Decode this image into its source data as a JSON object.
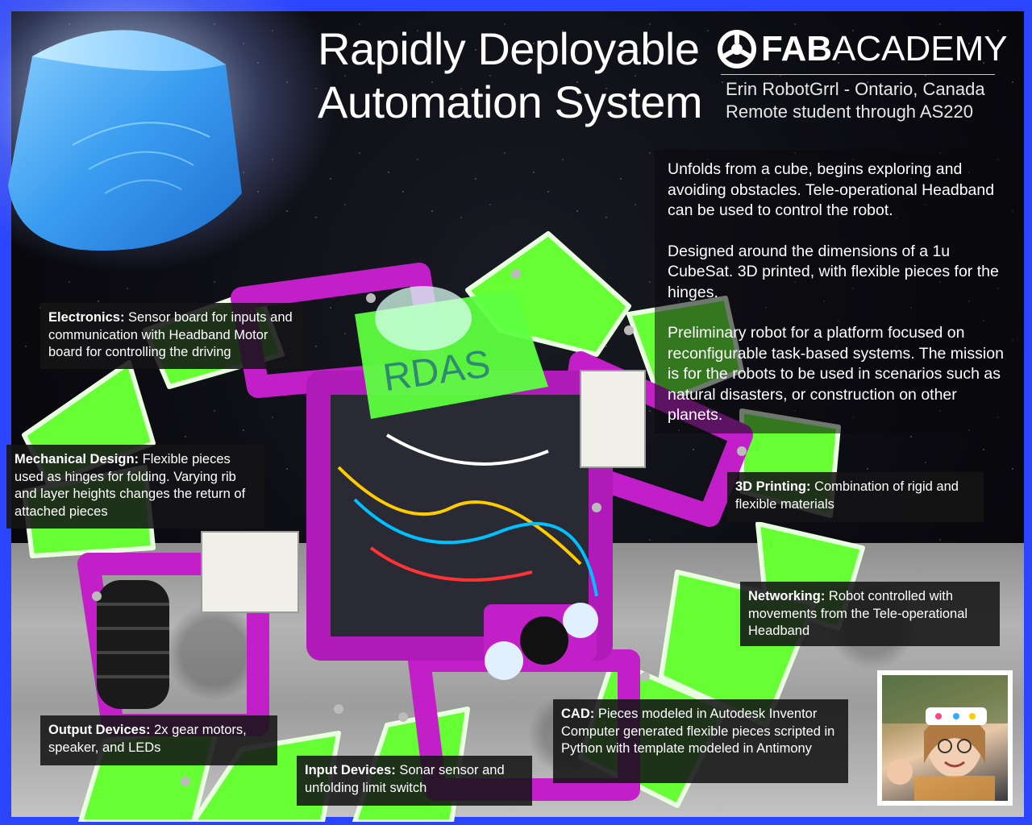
{
  "title": {
    "line1": "Rapidly Deployable",
    "line2": "Automation System"
  },
  "logo": {
    "bold": "FAB",
    "rest": "ACADEMY"
  },
  "author": {
    "line1": "Erin RobotGrrl - Ontario, Canada",
    "line2": "Remote student through AS220"
  },
  "description": [
    "Unfolds from a cube, begins exploring and avoiding obstacles. Tele-operational Headband can be used to control the robot.",
    "Designed around the dimensions of a 1u CubeSat. 3D printed, with flexible pieces for the hinges.",
    "Preliminary robot for a platform focused on reconfigurable task-based systems. The mission is for the robots to be used in scenarios such as natural disasters, or construction on other planets."
  ],
  "callouts": {
    "electronics": {
      "label": "Electronics:",
      "text": " Sensor board for inputs and communication with Headband Motor board for controlling the driving"
    },
    "mechanical": {
      "label": "Mechanical Design:",
      "text": " Flexible pieces used as hinges for folding. Varying rib and layer heights changes the return of  attached pieces"
    },
    "printing": {
      "label": "3D Printing:",
      "text": " Combination of rigid and flexible materials"
    },
    "networking": {
      "label": "Networking:",
      "text": " Robot controlled with movements from the Tele-operational Headband"
    },
    "cad": {
      "label": "CAD:",
      "text": " Pieces modeled in Autodesk Inventor Computer generated flexible pieces scripted in Python with template modeled in Antimony"
    },
    "output": {
      "label": "Output Devices:",
      "text": " 2x gear motors, speaker, and LEDs"
    },
    "input": {
      "label": "Input Devices:",
      "text": " Sonar sensor and unfolding limit switch"
    }
  },
  "robot_top_label": "RDAS",
  "colors": {
    "frame": "#2b44ff",
    "magenta": "#c21fc9",
    "green": "#66ff33",
    "panel": "#141416"
  }
}
